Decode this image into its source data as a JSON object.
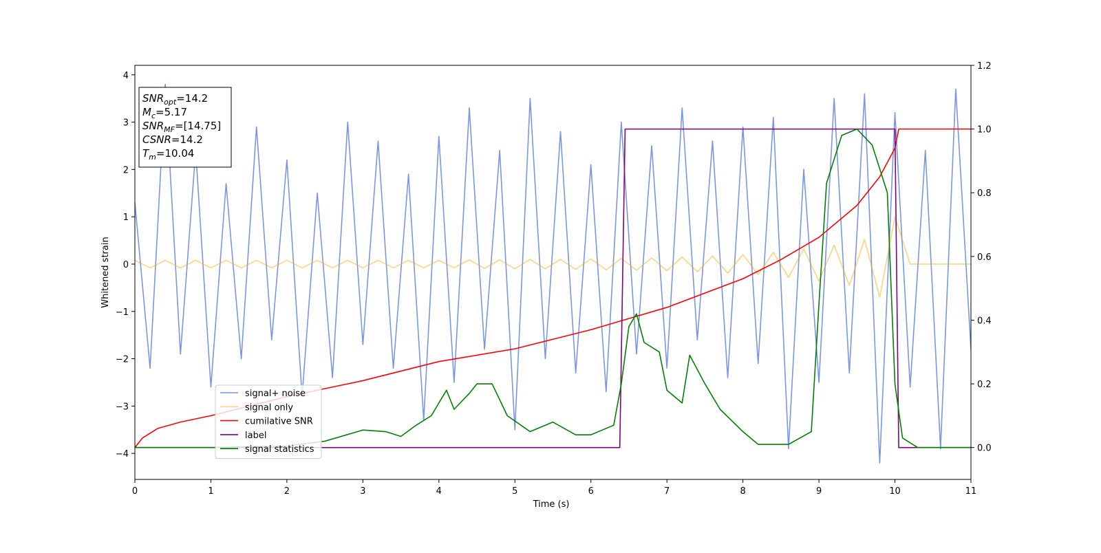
{
  "chart_data": {
    "type": "line",
    "xlabel": "Time (s)",
    "ylabel": "Whitened strain",
    "xlim": [
      0,
      11
    ],
    "xticks": [
      0,
      1,
      2,
      3,
      4,
      5,
      6,
      7,
      8,
      9,
      10,
      11
    ],
    "ylim": [
      -4.55,
      4.2
    ],
    "yticks": [
      {
        "value": -4,
        "label": "−4"
      },
      {
        "value": -3,
        "label": "−3"
      },
      {
        "value": -2,
        "label": "−2"
      },
      {
        "value": -1,
        "label": "−1"
      },
      0,
      1,
      2,
      3,
      4
    ],
    "y2lim": [
      -0.1,
      1.2
    ],
    "y2ticks": [
      {
        "value": 0,
        "label": "0.0"
      },
      {
        "value": 0.2,
        "label": "0.2"
      },
      {
        "value": 0.4,
        "label": "0.4"
      },
      {
        "value": 0.6,
        "label": "0.6"
      },
      {
        "value": 0.8,
        "label": "0.8"
      },
      {
        "value": 1,
        "label": "1.0"
      },
      {
        "value": 1.2,
        "label": "1.2"
      }
    ],
    "legend": "lower left",
    "stats": [
      {
        "name": "SNR",
        "sub": "opt",
        "value": "=14.2"
      },
      {
        "name": "M",
        "sub": "c",
        "value": "=5.17"
      },
      {
        "name": "SNR",
        "sub": "MF",
        "value": "=[14.75]"
      },
      {
        "name": "CSNR",
        "value": "=14.2"
      },
      {
        "name": "T",
        "sub": "m",
        "value": "=10.04"
      }
    ],
    "series": [
      {
        "name": "signal+ noise",
        "color": "#7895e8",
        "x": [
          0,
          0.2,
          0.4,
          0.6,
          0.8,
          1,
          1.2,
          1.4,
          1.6,
          1.8,
          2,
          2.2,
          2.4,
          2.6,
          2.8,
          3,
          3.2,
          3.4,
          3.6,
          3.8,
          4,
          4.2,
          4.4,
          4.6,
          4.8,
          5,
          5.2,
          5.4,
          5.6,
          5.8,
          6,
          6.2,
          6.4,
          6.6,
          6.8,
          7,
          7.2,
          7.4,
          7.6,
          7.8,
          8,
          8.2,
          8.4,
          8.6,
          8.8,
          9,
          9.2,
          9.4,
          9.6,
          9.8,
          10,
          10.2,
          10.4,
          10.6,
          10.8,
          11
        ],
        "values": [
          1.3,
          -2.2,
          3.8,
          -1.9,
          2.4,
          -2.6,
          1.7,
          -2.0,
          2.9,
          -1.6,
          2.2,
          -2.8,
          1.5,
          -2.4,
          3.0,
          -1.7,
          2.6,
          -2.2,
          1.9,
          -3.3,
          2.7,
          -2.5,
          3.3,
          -1.8,
          2.4,
          -3.5,
          3.5,
          -2.0,
          2.8,
          -2.3,
          2.1,
          -2.7,
          3.0,
          -1.9,
          2.5,
          -2.2,
          3.3,
          -1.6,
          2.6,
          -2.4,
          2.9,
          -2.1,
          3.1,
          -3.9,
          2.0,
          -2.5,
          3.5,
          -2.3,
          3.6,
          -4.2,
          3.2,
          -2.6,
          2.4,
          -3.9,
          3.7,
          -1.8
        ]
      },
      {
        "name": "signal only",
        "color": "#ffa500",
        "x": [
          0,
          0.2,
          0.4,
          0.6,
          0.8,
          1,
          1.2,
          1.4,
          1.6,
          1.8,
          2,
          2.2,
          2.4,
          2.6,
          2.8,
          3,
          3.2,
          3.4,
          3.6,
          3.8,
          4,
          4.2,
          4.4,
          4.6,
          4.8,
          5,
          5.2,
          5.4,
          5.6,
          5.8,
          6,
          6.2,
          6.4,
          6.6,
          6.8,
          7,
          7.2,
          7.4,
          7.6,
          7.8,
          8,
          8.2,
          8.4,
          8.6,
          8.8,
          9,
          9.2,
          9.4,
          9.6,
          9.8,
          10,
          10.2,
          10.4,
          10.6,
          10.8,
          11
        ],
        "values": [
          0.08,
          -0.08,
          0.08,
          -0.08,
          0.08,
          -0.08,
          0.08,
          -0.08,
          0.08,
          -0.08,
          0.08,
          -0.08,
          0.08,
          -0.08,
          0.08,
          -0.08,
          0.08,
          -0.08,
          0.08,
          -0.08,
          0.08,
          -0.08,
          0.09,
          -0.09,
          0.09,
          -0.1,
          0.1,
          -0.1,
          0.1,
          -0.11,
          0.11,
          -0.12,
          0.12,
          -0.13,
          0.13,
          -0.14,
          0.15,
          -0.16,
          0.17,
          -0.19,
          0.2,
          -0.22,
          0.25,
          -0.28,
          0.32,
          -0.36,
          0.4,
          -0.45,
          0.52,
          -0.7,
          1.0,
          0,
          0,
          0,
          0,
          0
        ]
      },
      {
        "name": "cumilative SNR",
        "color": "#ff0000",
        "axis": "y2",
        "x": [
          0,
          0.1,
          0.3,
          0.6,
          1,
          2,
          3,
          4,
          5,
          6,
          7,
          8,
          8.5,
          9,
          9.5,
          9.8,
          10,
          10.05,
          11
        ],
        "values": [
          0.0,
          0.03,
          0.06,
          0.08,
          0.1,
          0.16,
          0.21,
          0.27,
          0.31,
          0.37,
          0.44,
          0.53,
          0.59,
          0.66,
          0.76,
          0.85,
          0.94,
          1.0,
          1.0
        ]
      },
      {
        "name": "label",
        "color": "#800080",
        "axis": "y2",
        "x": [
          0,
          6.38,
          6.45,
          10.0,
          10.05,
          11
        ],
        "values": [
          0,
          0,
          1,
          1,
          0,
          0
        ]
      },
      {
        "name": "signal statistics",
        "color": "#008000",
        "axis": "y2",
        "x": [
          0,
          1,
          2,
          2.5,
          3,
          3.3,
          3.5,
          3.7,
          3.9,
          4.1,
          4.2,
          4.4,
          4.5,
          4.7,
          4.9,
          5.2,
          5.5,
          5.8,
          6.0,
          6.3,
          6.4,
          6.5,
          6.6,
          6.7,
          6.9,
          7.0,
          7.2,
          7.3,
          7.5,
          7.7,
          8.0,
          8.2,
          8.6,
          8.9,
          9.0,
          9.1,
          9.3,
          9.5,
          9.7,
          9.9,
          10.0,
          10.1,
          10.3,
          11
        ],
        "values": [
          0,
          0,
          0.005,
          0.02,
          0.055,
          0.05,
          0.035,
          0.07,
          0.1,
          0.18,
          0.12,
          0.17,
          0.2,
          0.2,
          0.1,
          0.05,
          0.08,
          0.04,
          0.04,
          0.07,
          0.2,
          0.38,
          0.42,
          0.33,
          0.3,
          0.18,
          0.14,
          0.29,
          0.2,
          0.12,
          0.05,
          0.01,
          0.01,
          0.05,
          0.45,
          0.83,
          0.98,
          1.0,
          0.95,
          0.8,
          0.2,
          0.03,
          0,
          0
        ]
      }
    ]
  }
}
